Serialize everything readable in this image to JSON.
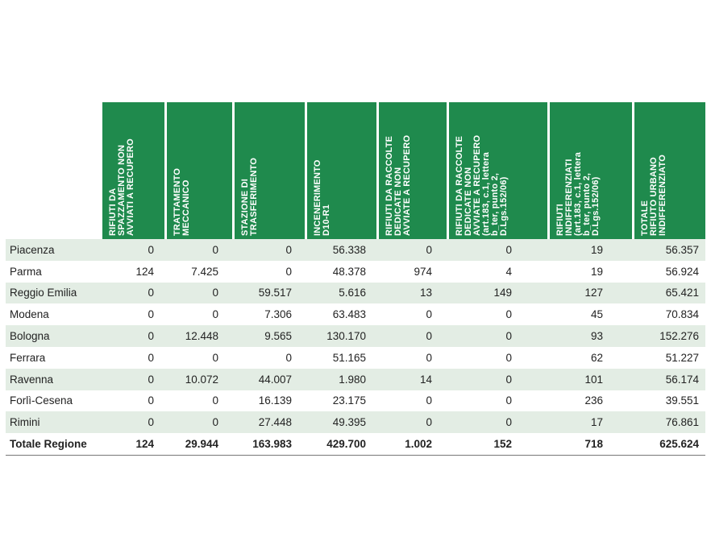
{
  "table": {
    "headers": [
      "RIFIUTI DA\nSPAZZAMENTO NON\nAVVIATI A RECUPERO",
      "TRATTAMENTO\nMECCANICO",
      "STAZIONE DI\nTRASFERIMENTO",
      "INCENERIMENTO\nD10-R1",
      "RIFIUTI DA RACCOLTE\nDEDICATE NON\nAVVIATE A RECUPERO",
      "RIFIUTI DA RACCOLTE\nDEDICATE NON\nAVVIATE A RECUPERO\n(art.183, c.1, lettera\nb_ter, punto 2,\nD.Lgs.152/06)",
      "RIFIUTI\nINDIFFERENZIATI\n(art.183, c.1, lettera\nb_ter, punto 2,\nD.Lgs.152/06)",
      "TOTALE\nRIFIUTO URBANO\nINDIFFERENZIATO"
    ],
    "rows": [
      {
        "name": "Piacenza",
        "values": [
          "0",
          "0",
          "0",
          "56.338",
          "0",
          "0",
          "19",
          "56.357"
        ]
      },
      {
        "name": "Parma",
        "values": [
          "124",
          "7.425",
          "0",
          "48.378",
          "974",
          "4",
          "19",
          "56.924"
        ]
      },
      {
        "name": "Reggio Emilia",
        "values": [
          "0",
          "0",
          "59.517",
          "5.616",
          "13",
          "149",
          "127",
          "65.421"
        ]
      },
      {
        "name": "Modena",
        "values": [
          "0",
          "0",
          "7.306",
          "63.483",
          "0",
          "0",
          "45",
          "70.834"
        ]
      },
      {
        "name": "Bologna",
        "values": [
          "0",
          "12.448",
          "9.565",
          "130.170",
          "0",
          "0",
          "93",
          "152.276"
        ]
      },
      {
        "name": "Ferrara",
        "values": [
          "0",
          "0",
          "0",
          "51.165",
          "0",
          "0",
          "62",
          "51.227"
        ]
      },
      {
        "name": "Ravenna",
        "values": [
          "0",
          "10.072",
          "44.007",
          "1.980",
          "14",
          "0",
          "101",
          "56.174"
        ]
      },
      {
        "name": "Forlì-Cesena",
        "values": [
          "0",
          "0",
          "16.139",
          "23.175",
          "0",
          "0",
          "236",
          "39.551"
        ]
      },
      {
        "name": "Rimini",
        "values": [
          "0",
          "0",
          "27.448",
          "49.395",
          "0",
          "0",
          "17",
          "76.861"
        ]
      }
    ],
    "total": {
      "name": "Totale Regione",
      "values": [
        "124",
        "29.944",
        "163.983",
        "429.700",
        "1.002",
        "152",
        "718",
        "625.624"
      ]
    }
  },
  "colors": {
    "header_bg": "#1f8a4d",
    "stripe": "#e3ede4"
  }
}
